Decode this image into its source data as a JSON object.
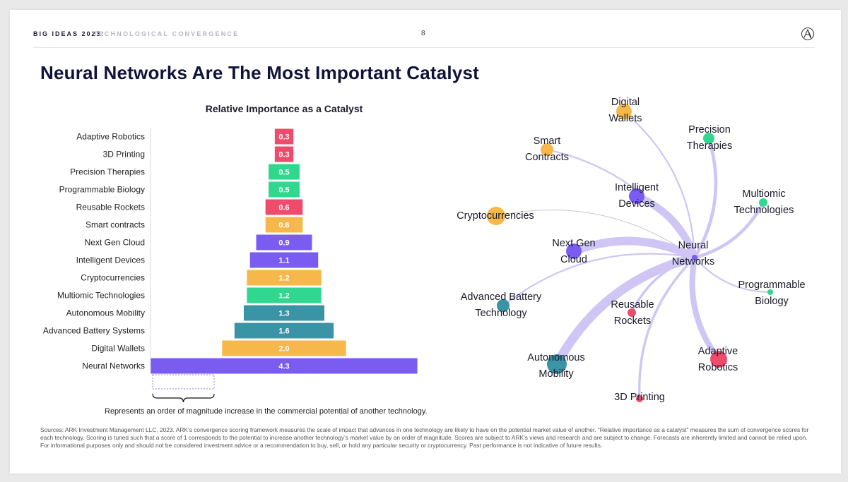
{
  "header": {
    "series": "BIG IDEAS 2023:",
    "subtitle": "TECHNOLOGICAL CONVERGENCE",
    "page": "8",
    "logo_icon": "ark-logo-icon"
  },
  "title": "Neural Networks Are The Most Important Catalyst",
  "chart_data": {
    "type": "bar",
    "title": "Relative Importance as a Catalyst",
    "orientation": "horizontal, centered (pyramid)",
    "categories": [
      "Adaptive Robotics",
      "3D Printing",
      "Precision Therapies",
      "Programmable Biology",
      "Reusable Rockets",
      "Smart contracts",
      "Next Gen Cloud",
      "Intelligent Devices",
      "Cryptocurrencies",
      "Multiomic Technologies",
      "Autonomous Mobility",
      "Advanced Battery Systems",
      "Digital Wallets",
      "Neural Networks"
    ],
    "values": [
      0.3,
      0.3,
      0.5,
      0.5,
      0.6,
      0.6,
      0.9,
      1.1,
      1.2,
      1.2,
      1.3,
      1.6,
      2.0,
      4.3
    ],
    "value_labels": [
      "0.3",
      "0.3",
      "0.5",
      "0.5",
      "0.6",
      "0.6",
      "0.9",
      "1.1",
      "1.2",
      "1.2",
      "1.3",
      "1.6",
      "2.0",
      "4.3"
    ],
    "colors": [
      "#ef4b6c",
      "#ef4b6c",
      "#2fd88e",
      "#2fd88e",
      "#ef4b6c",
      "#f7b84b",
      "#7b5cf0",
      "#7b5cf0",
      "#f7b84b",
      "#2fd88e",
      "#3b93a6",
      "#3b93a6",
      "#f7b84b",
      "#7b5cf0"
    ],
    "scale_legend": "Represents an order of magnitude increase in the commercial potential of another technology."
  },
  "network": {
    "hub": {
      "label": "Neural\nNetworks",
      "color": "#7b5cf0"
    },
    "nodes": [
      {
        "label": "Digital\nWallets",
        "color": "#f7b84b",
        "weight": 1
      },
      {
        "label": "Smart\nContracts",
        "color": "#f7b84b",
        "weight": 1
      },
      {
        "label": "Precision\nTherapies",
        "color": "#2fd88e",
        "weight": 3
      },
      {
        "label": "Intelligent\nDevices",
        "color": "#7b5cf0",
        "weight": 8
      },
      {
        "label": "Multiomic\nTechnologies",
        "color": "#2fd88e",
        "weight": 3
      },
      {
        "label": "Cryptocurrencies",
        "color": "#f7b84b",
        "weight": 0
      },
      {
        "label": "Next Gen\nCloud",
        "color": "#7b5cf0",
        "weight": 9
      },
      {
        "label": "Programmable\nBiology",
        "color": "#2fd88e",
        "weight": 1
      },
      {
        "label": "Advanced Battery\nTechnology",
        "color": "#3b93a6",
        "weight": 1
      },
      {
        "label": "Reusable\nRockets",
        "color": "#ef4b6c",
        "weight": 2
      },
      {
        "label": "Adaptive\nRobotics",
        "color": "#ef4b6c",
        "weight": 6
      },
      {
        "label": "Autonomous\nMobility",
        "color": "#3b93a6",
        "weight": 10
      },
      {
        "label": "3D Printing",
        "color": "#ef4b6c",
        "weight": 2
      }
    ],
    "edge_color": "#cfc6f5"
  },
  "sources": "Sources: ARK Investment Management LLC, 2023. ARK’s convergence scoring framework measures the scale of impact that advances in one technology are likely to have on the potential market value of another. “Relative importance as a catalyst” measures the sum of convergence scores for each technology. Scoring is tuned such that a score of 1 corresponds to the potential to increase another technology’s market value by an order of magnitude. Scores are subject to ARK’s views and research and are subject to change. Forecasts are inherently limited and cannot be relied upon. For informational purposes only and should not be considered investment advice or a recommendation to buy, sell, or hold any particular security or cryptocurrency. Past performance is not indicative of future results."
}
